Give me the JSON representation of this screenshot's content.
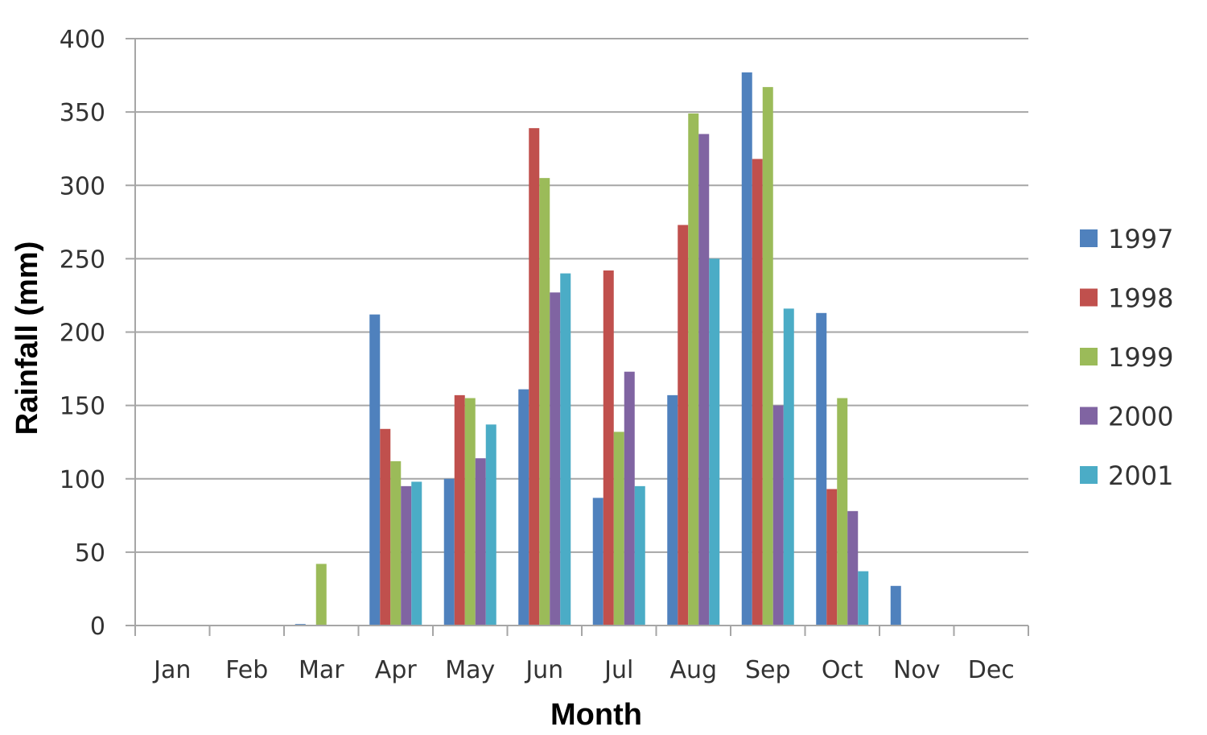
{
  "chart_data": {
    "type": "bar",
    "title": "",
    "xlabel": "Month",
    "ylabel": "Rainfall (mm)",
    "ylim": [
      0,
      400
    ],
    "yticks": [
      0,
      50,
      100,
      150,
      200,
      250,
      300,
      350,
      400
    ],
    "ytick_labels": [
      "0",
      "50",
      "100",
      "150",
      "200",
      "250",
      "300",
      "350",
      "400"
    ],
    "grid": true,
    "legend_position": "right",
    "categories": [
      "Jan",
      "Feb",
      "Mar",
      "Apr",
      "May",
      "Jun",
      "Jul",
      "Aug",
      "Sep",
      "Oct",
      "Nov",
      "Dec"
    ],
    "series": [
      {
        "name": "1997",
        "color": "#4F81BD",
        "values": [
          0,
          0,
          1,
          212,
          100,
          161,
          87,
          157,
          377,
          213,
          27,
          0
        ]
      },
      {
        "name": "1998",
        "color": "#C0504D",
        "values": [
          0,
          0,
          0,
          134,
          157,
          339,
          242,
          273,
          318,
          93,
          0,
          0
        ]
      },
      {
        "name": "1999",
        "color": "#9BBB59",
        "values": [
          0,
          0,
          42,
          112,
          155,
          305,
          132,
          349,
          367,
          155,
          0,
          0
        ]
      },
      {
        "name": "2000",
        "color": "#8064A2",
        "values": [
          0,
          0,
          0,
          95,
          114,
          227,
          173,
          335,
          150,
          78,
          0,
          0
        ]
      },
      {
        "name": "2001",
        "color": "#4BACC6",
        "values": [
          0,
          0,
          0,
          98,
          137,
          240,
          95,
          250,
          216,
          37,
          0,
          0
        ]
      }
    ]
  }
}
